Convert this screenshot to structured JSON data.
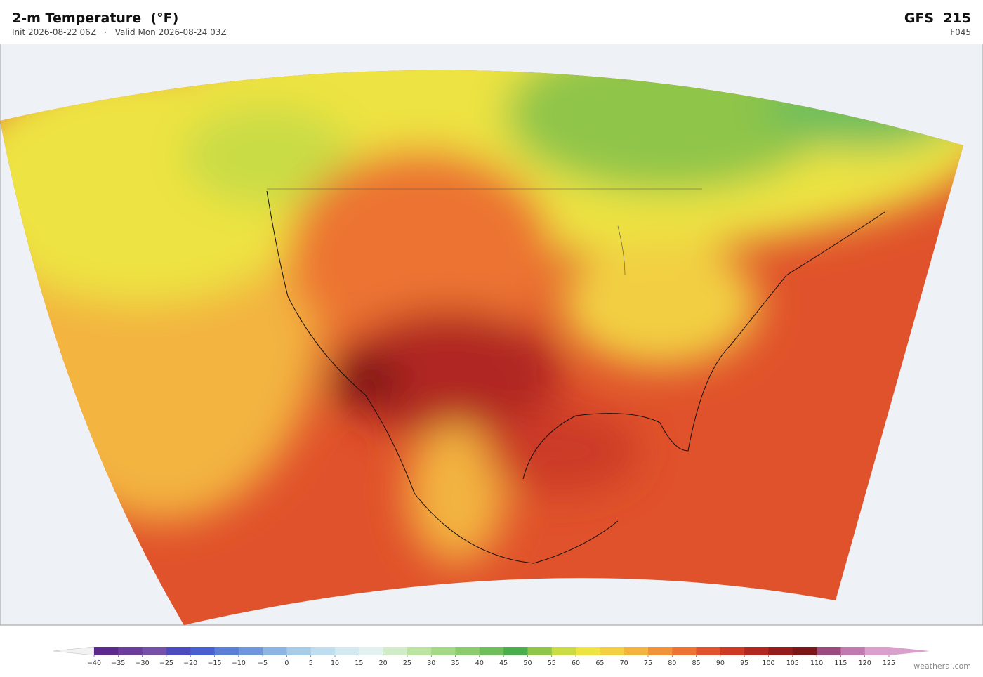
{
  "header": {
    "title": "2-m Temperature  (°F)",
    "subtitle": "Init 2026-08-22 06Z   ·   Valid Mon 2026-08-24 03Z",
    "model": "GFS  215",
    "forecast_hour": "F045"
  },
  "colorbar": {
    "ticks": [
      {
        "value": -40,
        "label": "−40"
      },
      {
        "value": -35,
        "label": "−35"
      },
      {
        "value": -30,
        "label": "−30"
      },
      {
        "value": -25,
        "label": "−25"
      },
      {
        "value": -20,
        "label": "−20"
      },
      {
        "value": -15,
        "label": "−15"
      },
      {
        "value": -10,
        "label": "−10"
      },
      {
        "value": -5,
        "label": "−5"
      },
      0,
      5,
      10,
      15,
      20,
      25,
      30,
      35,
      40,
      45,
      50,
      55,
      60,
      65,
      70,
      75,
      80,
      85,
      90,
      95,
      100,
      105,
      110,
      115,
      120,
      125
    ],
    "colors": [
      "#5b2a8c",
      "#6a3d9a",
      "#7450a8",
      "#4b4bbf",
      "#4a5fcf",
      "#5b7fd6",
      "#6f96dc",
      "#8db4e2",
      "#a8cbe8",
      "#c0dcef",
      "#d4e9f2",
      "#e4f2ef",
      "#d2ebc8",
      "#bde3a3",
      "#a5d884",
      "#8ccc6e",
      "#6fbe5c",
      "#4cad4c",
      "#8fc54a",
      "#c9dc45",
      "#ede342",
      "#f2cf43",
      "#f3b43f",
      "#f0933a",
      "#ec7333",
      "#e0522b",
      "#cc3a25",
      "#b02820",
      "#941c1c",
      "#7a1518",
      "#9b4a7e",
      "#c07ab0",
      "#d9a0cb"
    ],
    "under_color": "#f2f2f2",
    "over_color": "#d9a0cb"
  },
  "footer": {
    "credit": "weatherai.com"
  }
}
